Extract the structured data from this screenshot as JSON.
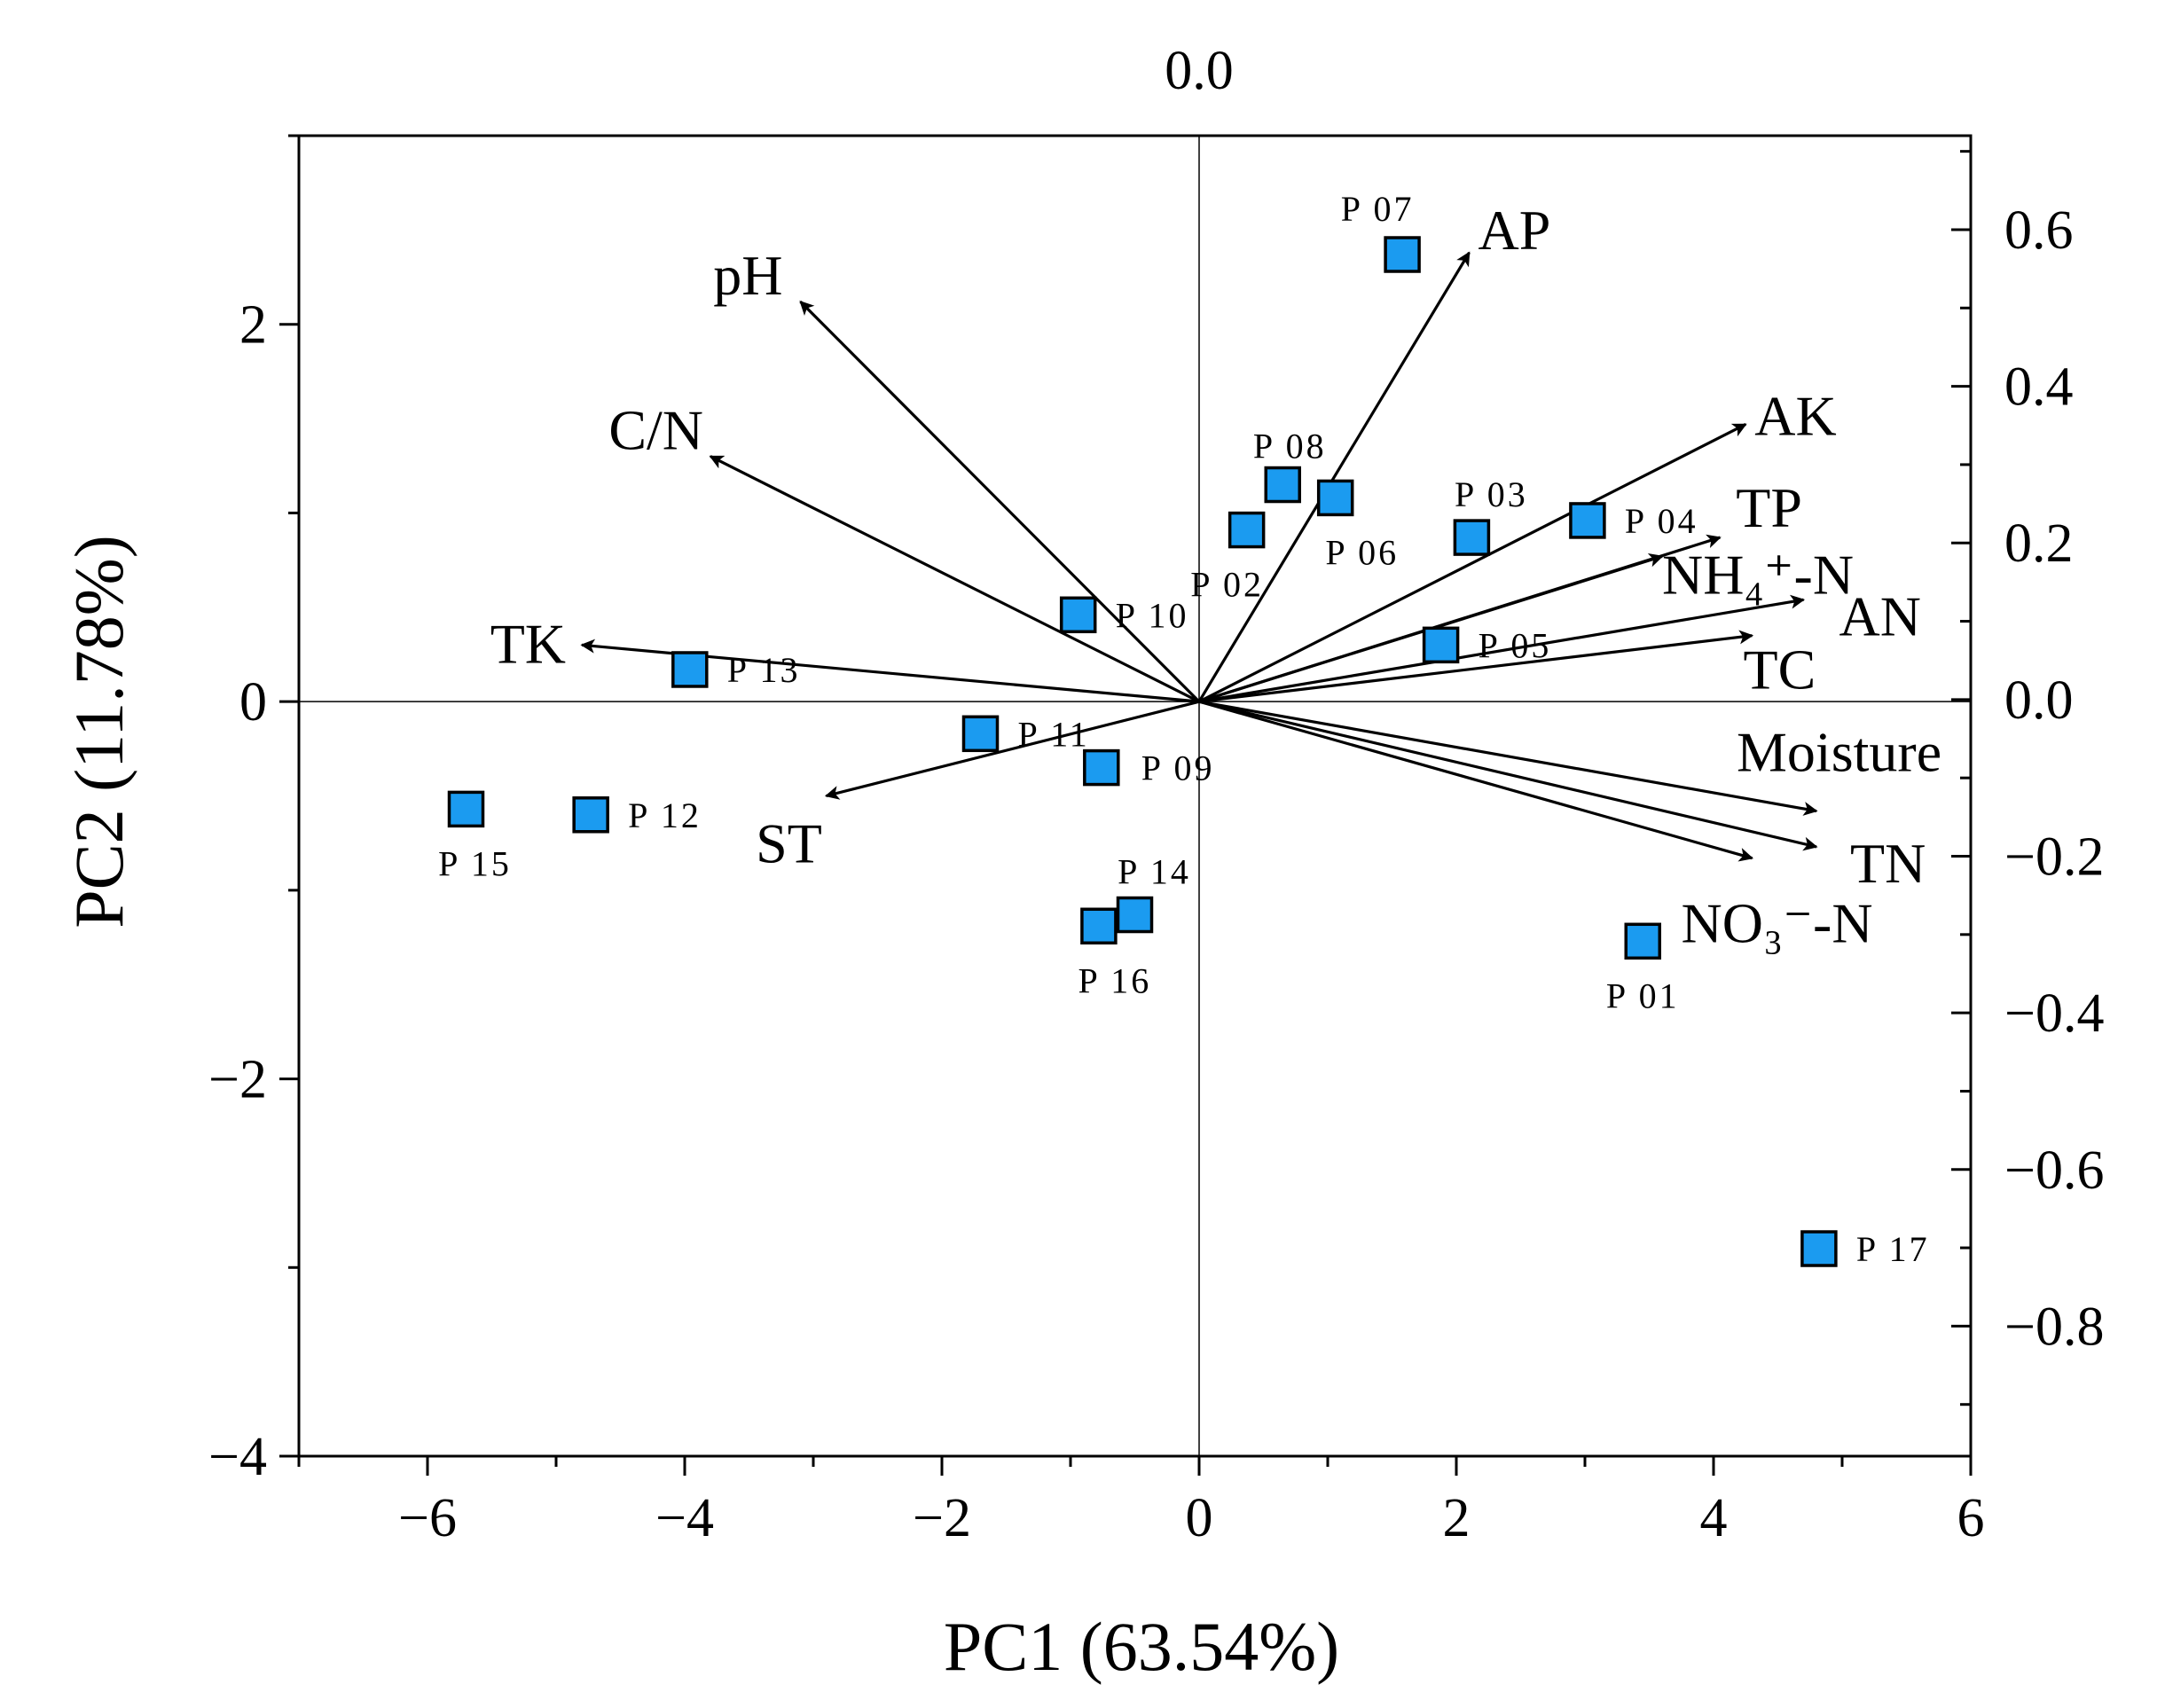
{
  "chart_data": {
    "type": "scatter",
    "subtype": "pca-biplot",
    "xlabel": "PC1 (63.54%)",
    "ylabel": "PC2 (11.78%)",
    "top_label": "0.0",
    "xlim": [
      -7,
      6
    ],
    "ylim": [
      -4,
      3
    ],
    "y2lim": [
      -0.966,
      0.72
    ],
    "x_ticks": [
      -6,
      -4,
      -2,
      0,
      2,
      4,
      6
    ],
    "x_tick_labels": [
      "−6",
      "−4",
      "−2",
      "0",
      "2",
      "4",
      "6"
    ],
    "y_ticks": [
      -4,
      -2,
      0,
      2
    ],
    "y_tick_labels": [
      "−4",
      "−2",
      "0",
      "2"
    ],
    "y2_ticks": [
      -0.8,
      -0.6,
      -0.4,
      -0.2,
      0.0,
      0.2,
      0.4,
      0.6
    ],
    "y2_tick_labels": [
      "−0.8",
      "−0.6",
      "−0.4",
      "−0.2",
      "0.0",
      "0.2",
      "0.4",
      "0.6"
    ],
    "grid": false,
    "marker_color": "#1b9bf0",
    "samples": [
      {
        "name": "P 01",
        "x": 3.45,
        "y": -1.27
      },
      {
        "name": "P 02",
        "x": 0.37,
        "y": 0.91
      },
      {
        "name": "P 03",
        "x": 2.12,
        "y": 0.87
      },
      {
        "name": "P 04",
        "x": 3.02,
        "y": 0.96
      },
      {
        "name": "P 05",
        "x": 1.88,
        "y": 0.3
      },
      {
        "name": "P 06",
        "x": 1.06,
        "y": 1.08
      },
      {
        "name": "P 07",
        "x": 1.58,
        "y": 2.37
      },
      {
        "name": "P 08",
        "x": 0.65,
        "y": 1.15
      },
      {
        "name": "P 09",
        "x": -0.76,
        "y": -0.35
      },
      {
        "name": "P 10",
        "x": -0.94,
        "y": 0.46
      },
      {
        "name": "P 11",
        "x": -1.7,
        "y": -0.17
      },
      {
        "name": "P 12",
        "x": -4.73,
        "y": -0.6
      },
      {
        "name": "P 13",
        "x": -3.96,
        "y": 0.17
      },
      {
        "name": "P 14",
        "x": -0.5,
        "y": -1.13
      },
      {
        "name": "P 15",
        "x": -5.7,
        "y": -0.57
      },
      {
        "name": "P 16",
        "x": -0.78,
        "y": -1.19
      },
      {
        "name": "P 17",
        "x": 4.82,
        "y": -2.9
      }
    ],
    "loadings": [
      {
        "name": "AP",
        "x": 2.1,
        "y": 2.38
      },
      {
        "name": "pH",
        "x": -3.1,
        "y": 2.12
      },
      {
        "name": "C/N",
        "x": -3.8,
        "y": 1.3
      },
      {
        "name": "TK",
        "x": -4.8,
        "y": 0.3
      },
      {
        "name": "ST",
        "x": -2.9,
        "y": -0.5
      },
      {
        "name": "AK",
        "x": 4.25,
        "y": 1.47
      },
      {
        "name": "TP",
        "x": 4.05,
        "y": 0.87
      },
      {
        "name": "NH₄⁺-N",
        "x": 3.6,
        "y": 0.77
      },
      {
        "name": "AN",
        "x": 4.7,
        "y": 0.54
      },
      {
        "name": "TC",
        "x": 4.3,
        "y": 0.35
      },
      {
        "name": "Moisture",
        "x": 4.8,
        "y": -0.58
      },
      {
        "name": "TN",
        "x": 4.8,
        "y": -0.77
      },
      {
        "name": "NO₃⁻-N",
        "x": 4.3,
        "y": -0.83
      }
    ]
  }
}
